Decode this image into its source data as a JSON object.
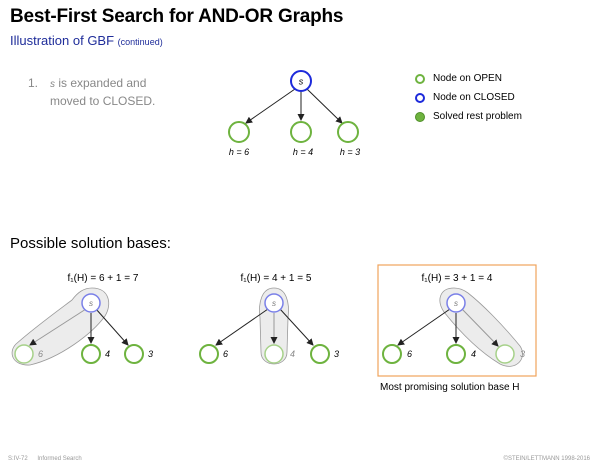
{
  "title": "Best-First Search for AND-OR Graphs",
  "subtitle": "Illustration of GBF",
  "subtitle_note": "(continued)",
  "step": {
    "number": "1.",
    "var": "s",
    "text1": " is expanded and",
    "text2": "moved to CLOSED."
  },
  "legend": [
    {
      "label": "Node on OPEN",
      "style": "open"
    },
    {
      "label": "Node on CLOSED",
      "style": "closed"
    },
    {
      "label": "Solved rest problem",
      "style": "solved"
    }
  ],
  "colors": {
    "open": "#6eb33f",
    "closed": "#1d2adb",
    "solved": "#6eb33f",
    "highlight_box": "#f0a45c"
  },
  "top_tree": {
    "root": "s",
    "children": [
      "h = 6",
      "h = 4",
      "h = 3"
    ]
  },
  "section_label": "Possible solution bases:",
  "bases": [
    {
      "formula": "f₁(H) = 6 + 1 = 7",
      "root": "s",
      "children": [
        "6",
        "4",
        "3"
      ],
      "selected_child": 0,
      "most_promising": false
    },
    {
      "formula": "f₁(H) = 4 + 1 = 5",
      "root": "s",
      "children": [
        "6",
        "4",
        "3"
      ],
      "selected_child": 1,
      "most_promising": false
    },
    {
      "formula": "f₁(H) = 3 + 1 = 4",
      "root": "s",
      "children": [
        "6",
        "4",
        "3"
      ],
      "selected_child": 2,
      "most_promising": true
    }
  ],
  "caption": "Most promising solution base H",
  "footer": {
    "code": "S:IV-72",
    "topic": "Informed Search",
    "copyright": "©STEIN/LETTMANN 1998-2016"
  }
}
